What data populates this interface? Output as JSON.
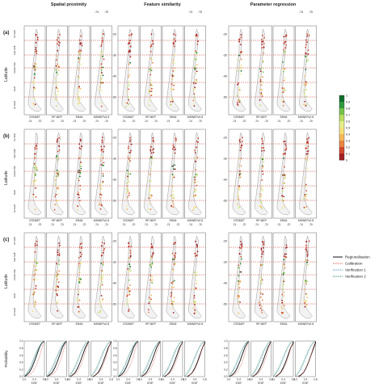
{
  "figure": {
    "columns": [
      "Spatial proximity",
      "Feature similarity",
      "Parameter regression"
    ],
    "rows": [
      "(a)",
      "(b)",
      "(c)"
    ],
    "products": [
      "CR2MET",
      "RF MEP",
      "ERA5",
      "MSWEPv2.8"
    ],
    "ylabel": "Latitude",
    "lat_ticks": [
      "-20",
      "-30",
      "-40",
      "-50"
    ],
    "lon_ticks": [
      "-74",
      "-70"
    ],
    "region_labels": [
      "Far North",
      "Near North",
      "Central Chile",
      "South",
      "Far South"
    ]
  },
  "colorbar": {
    "ticks": [
      "1",
      "0.9",
      "0.8",
      "0.7",
      "0.6",
      "0.5",
      "0.4",
      "0.3",
      "0.2",
      "0.1",
      "0"
    ],
    "colors": [
      "#0f6d2e",
      "#2f9a3e",
      "#76c24a",
      "#b9dc63",
      "#e6ef8a",
      "#f6e07b",
      "#f5b85a",
      "#ea8542",
      "#d2482e",
      "#a51f22"
    ]
  },
  "legend": {
    "entries": [
      {
        "label": "Regionalisation",
        "color": "#111111",
        "style": "solid"
      },
      {
        "label": "Calibration",
        "color": "#d9534f",
        "style": "dotted"
      },
      {
        "label": "Verification 1",
        "color": "#4a90c2",
        "style": "dotted"
      },
      {
        "label": "Verification 2",
        "color": "#2e8b57",
        "style": "dotted"
      }
    ]
  },
  "chart_data": {
    "type": "line",
    "title": "",
    "xlabel": "KGE'",
    "ylabel": "Probability",
    "xlim": [
      0.0,
      0.8
    ],
    "ylim": [
      0.0,
      1.0
    ],
    "x_ticks": [
      "0.0",
      "0.4",
      "0.8"
    ],
    "y_ticks": [
      "0.0",
      "0.2",
      "0.4",
      "0.6",
      "0.8",
      "1.0"
    ],
    "x": [
      0.0,
      0.1,
      0.2,
      0.3,
      0.4,
      0.5,
      0.6,
      0.7,
      0.8
    ],
    "series": [
      {
        "name": "Regionalisation",
        "values": [
          0.0,
          0.05,
          0.12,
          0.25,
          0.42,
          0.62,
          0.82,
          0.95,
          1.0
        ]
      },
      {
        "name": "Calibration",
        "values": [
          0.0,
          0.02,
          0.05,
          0.1,
          0.2,
          0.35,
          0.55,
          0.8,
          1.0
        ]
      },
      {
        "name": "Verification 1",
        "values": [
          0.0,
          0.08,
          0.18,
          0.32,
          0.5,
          0.68,
          0.84,
          0.95,
          1.0
        ]
      },
      {
        "name": "Verification 2",
        "values": [
          0.0,
          0.1,
          0.22,
          0.38,
          0.56,
          0.72,
          0.86,
          0.96,
          1.0
        ]
      }
    ]
  }
}
